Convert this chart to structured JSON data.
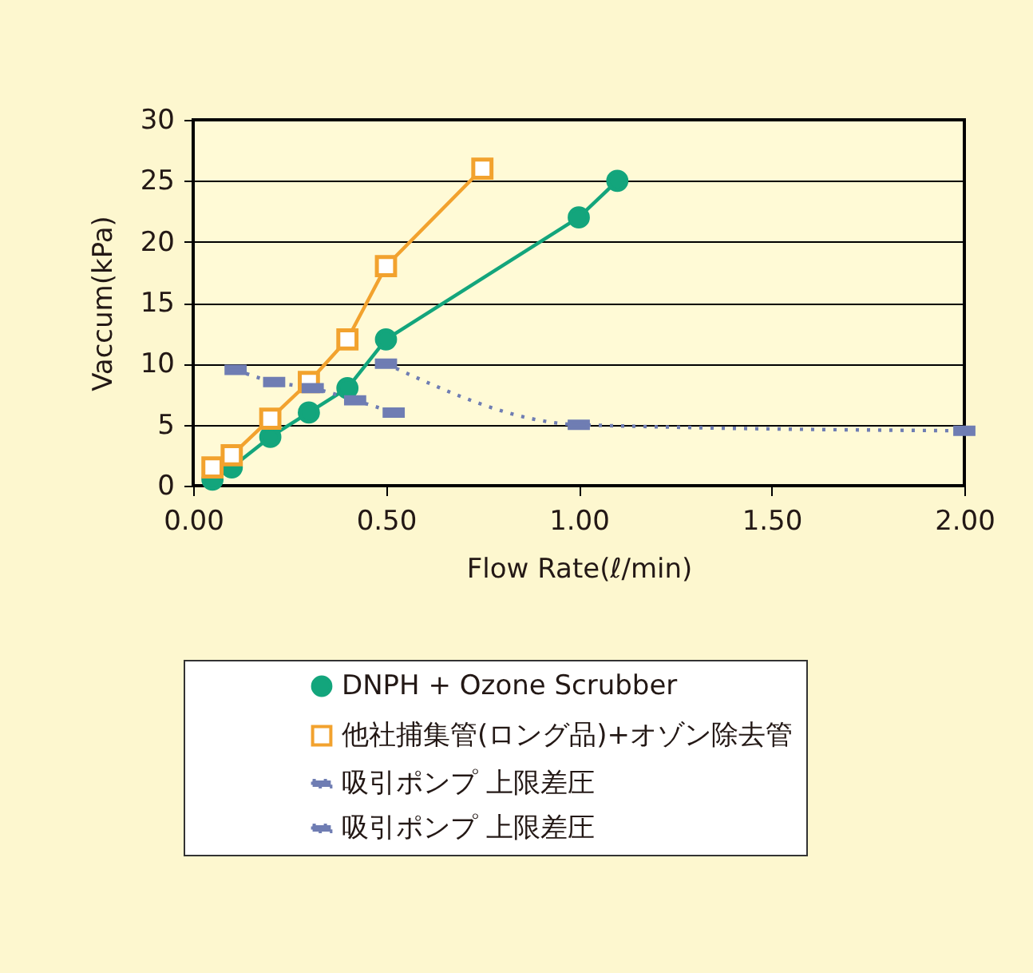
{
  "chart_data": {
    "type": "line",
    "xlabel": "Flow Rate(ℓ/min)",
    "ylabel": "Vaccum(kPa)",
    "xlim": [
      0,
      2
    ],
    "xticks": [
      {
        "value": 0,
        "label": "0.00"
      },
      {
        "value": 0.5,
        "label": "0.50"
      },
      {
        "value": 1,
        "label": "1.00"
      },
      {
        "value": 1.5,
        "label": "1.50"
      },
      {
        "value": 2,
        "label": "2.00"
      }
    ],
    "ylim": [
      0,
      30
    ],
    "yticks": [
      0,
      5,
      10,
      15,
      20,
      25,
      30
    ],
    "grid": "y",
    "legend": "bottom",
    "series": [
      {
        "name": "DNPH + Ozone Scrubber",
        "color": "#13a57c",
        "marker": "circle",
        "line_style": "solid",
        "x": [
          0.05,
          0.1,
          0.2,
          0.3,
          0.4,
          0.5,
          1.0,
          1.1
        ],
        "values": [
          0.5,
          1.5,
          4,
          6,
          8,
          12,
          22,
          25
        ]
      },
      {
        "name": "他社捕集管(ロング品)+オゾン除去管",
        "color": "#f2a22e",
        "marker": "square",
        "line_style": "solid",
        "x": [
          0.05,
          0.1,
          0.2,
          0.3,
          0.4,
          0.5,
          0.75
        ],
        "values": [
          1.5,
          2.5,
          5.5,
          8.5,
          12,
          18,
          26
        ]
      },
      {
        "name": "吸引ポンプ 上限差圧",
        "color": "#6f7db3",
        "marker": "square",
        "line_style": "dotted",
        "x": [
          0.11,
          0.21,
          0.31,
          0.42,
          0.52
        ],
        "values": [
          9.5,
          8.5,
          8,
          7,
          6
        ]
      },
      {
        "name": "吸引ポンプ 上限差圧",
        "color": "#6f7db3",
        "marker": "square",
        "line_style": "dotted",
        "x": [
          0.5,
          1.0,
          2.0
        ],
        "values": [
          10,
          5,
          4.5
        ]
      }
    ]
  }
}
